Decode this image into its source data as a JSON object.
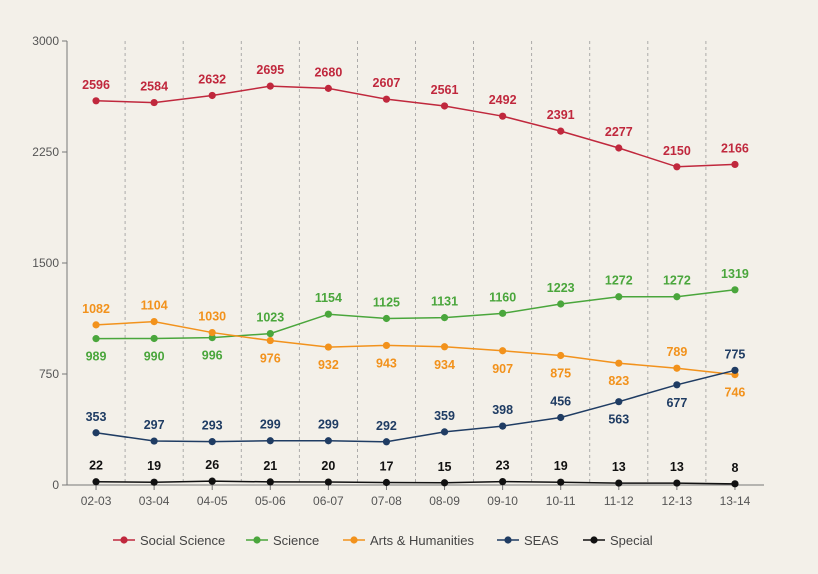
{
  "chart_data": {
    "type": "line",
    "title": "",
    "xlabel": "",
    "ylabel": "",
    "categories": [
      "02-03",
      "03-04",
      "04-05",
      "05-06",
      "06-07",
      "07-08",
      "08-09",
      "09-10",
      "10-11",
      "11-12",
      "12-13",
      "13-14"
    ],
    "ylim": [
      0,
      3000
    ],
    "yticks": [
      "0",
      "750",
      "1500",
      "2250",
      "3000"
    ],
    "grid": "vertical-dashed",
    "legend_position": "bottom",
    "series": [
      {
        "name": "Social Science",
        "color": "#c0283d",
        "label_position": "above",
        "values": [
          2596,
          2584,
          2632,
          2695,
          2680,
          2607,
          2561,
          2492,
          2391,
          2277,
          2150,
          2166
        ],
        "labels": [
          "2596",
          "2584",
          "2632",
          "2695",
          "2680",
          "2607",
          "2561",
          "2492",
          "2391",
          "2277",
          "2150",
          "2166"
        ]
      },
      {
        "name": "Science",
        "color": "#4aa63c",
        "label_position": "mixed",
        "values": [
          989,
          990,
          996,
          1023,
          1154,
          1125,
          1131,
          1160,
          1223,
          1272,
          1272,
          1319
        ],
        "labels": [
          "989",
          "990",
          "996",
          "1023",
          "1154",
          "1125",
          "1131",
          "1160",
          "1223",
          "1272",
          "1272",
          "1319"
        ]
      },
      {
        "name": "Arts & Humanities",
        "color": "#f2921c",
        "label_position": "mixed",
        "values": [
          1082,
          1104,
          1030,
          976,
          932,
          943,
          934,
          907,
          875,
          823,
          789,
          746
        ],
        "labels": [
          "1082",
          "1104",
          "1030",
          "976",
          "932",
          "943",
          "934",
          "907",
          "875",
          "823",
          "789",
          "746"
        ]
      },
      {
        "name": "SEAS",
        "color": "#1f3c63",
        "label_position": "mixed",
        "values": [
          353,
          297,
          293,
          299,
          299,
          292,
          359,
          398,
          456,
          563,
          677,
          775
        ],
        "labels": [
          "353",
          "297",
          "293",
          "299",
          "299",
          "292",
          "359",
          "398",
          "456",
          "563",
          "677",
          "775"
        ]
      },
      {
        "name": "Special",
        "color": "#111111",
        "label_position": "above",
        "values": [
          22,
          19,
          26,
          21,
          20,
          17,
          15,
          23,
          19,
          13,
          13,
          8
        ],
        "labels": [
          "22",
          "19",
          "26",
          "21",
          "20",
          "17",
          "15",
          "23",
          "19",
          "13",
          "13",
          "8"
        ]
      }
    ]
  }
}
